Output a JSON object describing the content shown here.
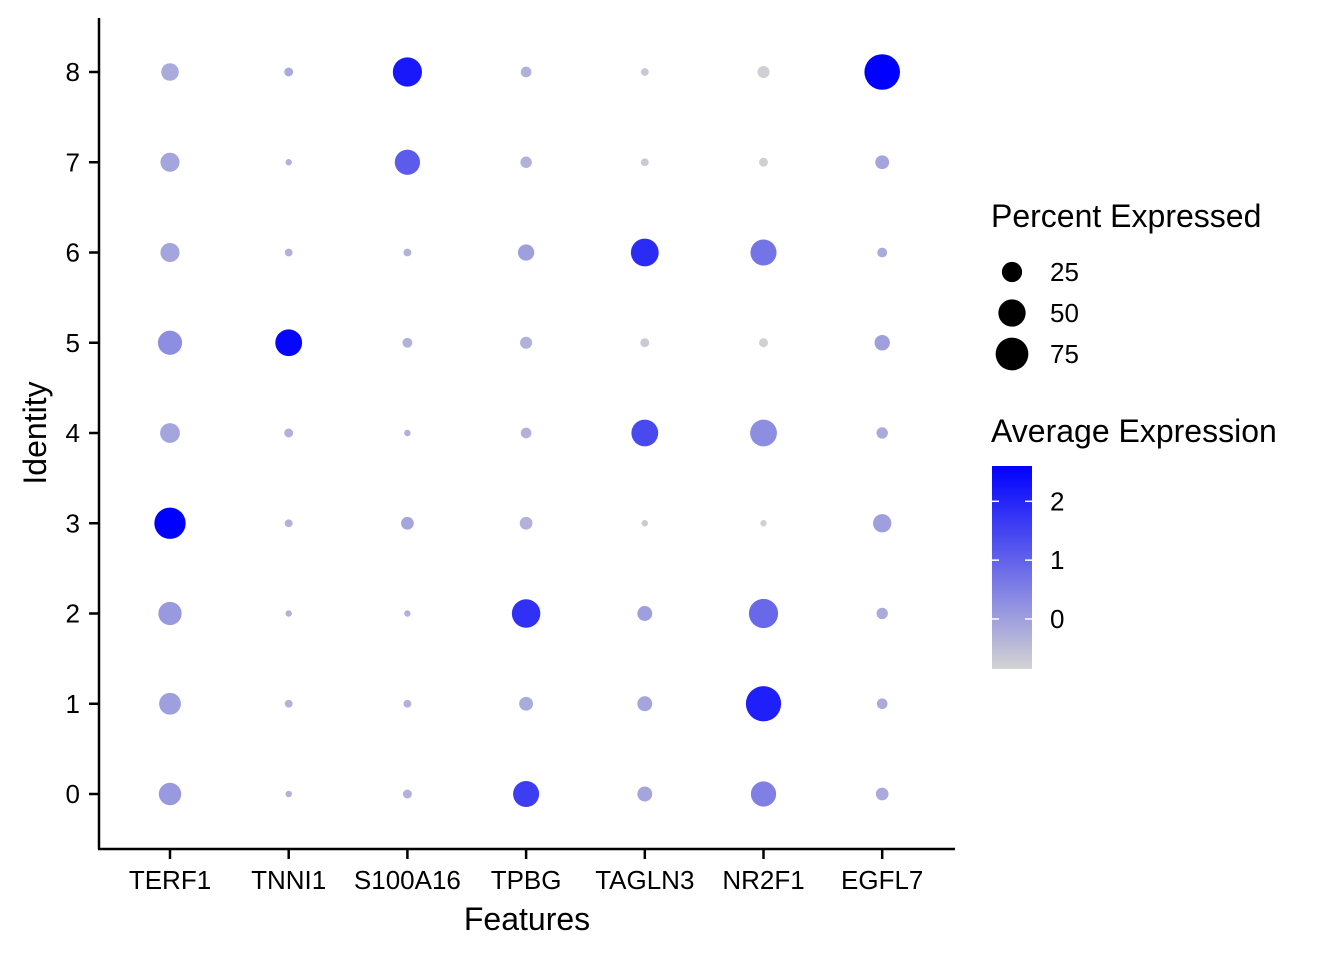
{
  "chart_data": {
    "type": "dot",
    "xlabel": "Features",
    "ylabel": "Identity",
    "categories": [
      "TERF1",
      "TNNI1",
      "S100A16",
      "TPBG",
      "TAGLN3",
      "NR2F1",
      "EGFL7"
    ],
    "identities": [
      "0",
      "1",
      "2",
      "3",
      "4",
      "5",
      "6",
      "7",
      "8"
    ],
    "percent_expressed": [
      [
        32,
        1,
        3,
        45,
        12,
        42,
        8
      ],
      [
        30,
        2,
        2,
        10,
        12,
        88,
        5
      ],
      [
        35,
        1,
        1,
        55,
        12,
        58,
        6
      ],
      [
        68,
        2,
        8,
        8,
        1,
        1,
        20
      ],
      [
        24,
        3,
        1,
        5,
        48,
        48,
        6
      ],
      [
        38,
        48,
        4,
        7,
        3,
        3,
        13
      ],
      [
        22,
        2,
        2,
        15,
        52,
        45,
        4
      ],
      [
        22,
        1,
        42,
        6,
        2,
        3,
        10
      ],
      [
        18,
        3,
        58,
        5,
        2,
        7,
        90
      ]
    ],
    "average_expression": [
      [
        0.1,
        -0.3,
        -0.3,
        1.6,
        -0.1,
        0.5,
        -0.2
      ],
      [
        0.0,
        -0.3,
        -0.3,
        -0.2,
        -0.1,
        2.1,
        -0.2
      ],
      [
        0.1,
        -0.3,
        -0.3,
        1.8,
        0.0,
        0.9,
        -0.2
      ],
      [
        2.6,
        -0.3,
        -0.1,
        -0.3,
        -0.7,
        -0.8,
        0.0
      ],
      [
        -0.1,
        -0.3,
        -0.3,
        -0.3,
        1.4,
        0.3,
        -0.2
      ],
      [
        0.3,
        2.5,
        -0.3,
        -0.3,
        -0.7,
        -0.8,
        0.0
      ],
      [
        -0.1,
        -0.3,
        -0.3,
        0.0,
        1.9,
        0.7,
        -0.2
      ],
      [
        -0.1,
        -0.3,
        1.1,
        -0.3,
        -0.7,
        -0.8,
        -0.1
      ],
      [
        -0.2,
        -0.2,
        2.2,
        -0.3,
        -0.7,
        -0.8,
        2.6
      ]
    ],
    "size_legend": {
      "title": "Percent Expressed",
      "entries": [
        25,
        50,
        75
      ]
    },
    "color_legend": {
      "title": "Average Expression",
      "min": -0.85,
      "max": 2.6,
      "ticks": [
        0,
        1,
        2
      ],
      "low_color": "#d3d3d3",
      "high_color": "#0000ff"
    },
    "grid": false,
    "legend_position": "right"
  }
}
